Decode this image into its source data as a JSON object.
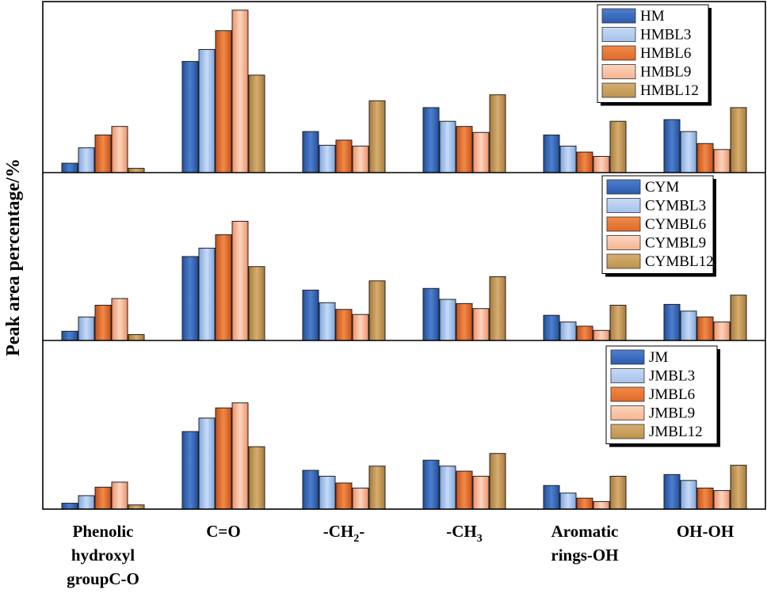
{
  "chart_data": {
    "type": "bar",
    "ylabel": "Peak area percentage/%",
    "categories": [
      [
        "Phenolic",
        "hydroxyl",
        "groupC-O"
      ],
      [
        "C=O"
      ],
      [
        "-CH",
        "2",
        "-"
      ],
      [
        "-CH",
        "3",
        ""
      ],
      [
        "Aromatic",
        "rings-OH"
      ],
      [
        "OH-OH"
      ]
    ],
    "category_labels": [
      "Phenolic hydroxyl groupC-O",
      "C=O",
      "-CH2-",
      "-CH3",
      "Aromatic rings-OH",
      "OH-OH"
    ],
    "colors": {
      "s0": [
        "#1f4f9e",
        "#4f7fcc",
        "#2a5cae"
      ],
      "s1": [
        "#7fa6df",
        "#c7daf5",
        "#a5c2ec"
      ],
      "s2": [
        "#c8501a",
        "#f08a48",
        "#e06a2a"
      ],
      "s3": [
        "#f0906a",
        "#fbd6bf",
        "#f6b491"
      ],
      "s4": [
        "#a67b3c",
        "#d6ae70",
        "#bd934f"
      ]
    },
    "panels": [
      {
        "ylim": [
          0,
          100
        ],
        "series": [
          {
            "name": "HM",
            "values": [
              5.5,
              65,
              24,
              38,
              22,
              31
            ]
          },
          {
            "name": "HMBL3",
            "values": [
              14.5,
              72,
              16,
              30,
              15.5,
              24
            ]
          },
          {
            "name": "HMBL6",
            "values": [
              22,
              83,
              19,
              27,
              12,
              17
            ]
          },
          {
            "name": "HMBL9",
            "values": [
              27,
              95,
              15.5,
              23.5,
              9.5,
              13.5
            ]
          },
          {
            "name": "HMBL12",
            "values": [
              2.5,
              57,
              42,
              45.5,
              30,
              38
            ]
          }
        ]
      },
      {
        "ylim": [
          0,
          100
        ],
        "series": [
          {
            "name": "CYM",
            "values": [
              5.5,
              50,
              30,
              31,
              15,
              21.5
            ]
          },
          {
            "name": "CYMBL3",
            "values": [
              14,
              55,
              22.5,
              24.5,
              11,
              17.5
            ]
          },
          {
            "name": "CYMBL6",
            "values": [
              21,
              63,
              18.5,
              22,
              8.5,
              14
            ]
          },
          {
            "name": "CYMBL9",
            "values": [
              25,
              71,
              15.5,
              19,
              6,
              11
            ]
          },
          {
            "name": "CYMBL12",
            "values": [
              3.5,
              44,
              35.5,
              38,
              21,
              27
            ]
          }
        ]
      },
      {
        "ylim": [
          0,
          100
        ],
        "series": [
          {
            "name": "JM",
            "values": [
              3.5,
              46,
              23,
              29,
              14,
              20.5
            ]
          },
          {
            "name": "JMBL3",
            "values": [
              8,
              54,
              19.5,
              25.5,
              9.5,
              17
            ]
          },
          {
            "name": "JMBL6",
            "values": [
              13,
              60,
              15.5,
              22.5,
              6.5,
              12.5
            ]
          },
          {
            "name": "JMBL9",
            "values": [
              16,
              63,
              12.5,
              19.5,
              4.5,
              11
            ]
          },
          {
            "name": "JMBL12",
            "values": [
              2.5,
              37,
              25.5,
              33,
              19.5,
              26
            ]
          }
        ]
      }
    ]
  }
}
